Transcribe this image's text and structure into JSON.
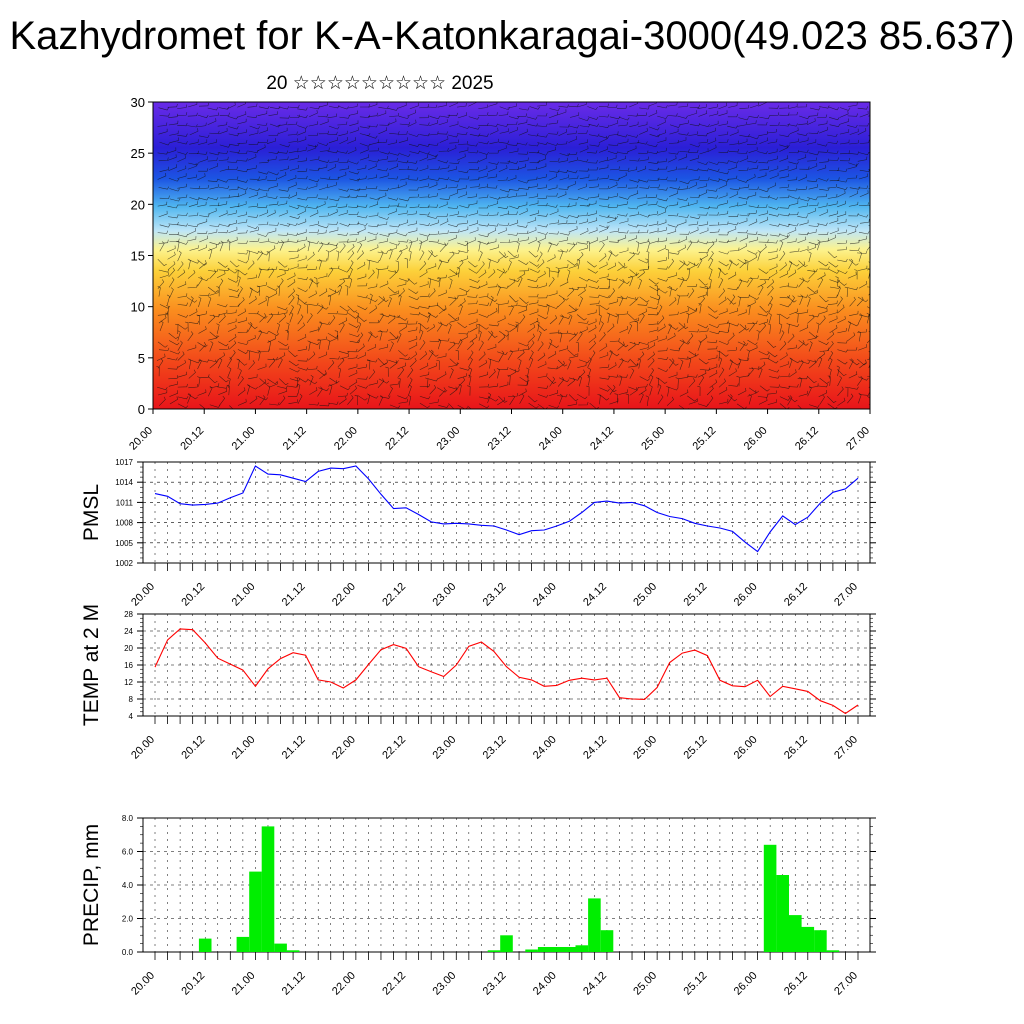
{
  "title": "Kazhydromet for K-A-Katonkaragai-3000(49.023 85.637)",
  "subtitle": "20 ☆☆☆☆☆☆☆☆☆ 2025",
  "x_tick_labels": [
    "20.00",
    "20.12",
    "21.00",
    "21.12",
    "22.00",
    "22.12",
    "23.00",
    "23.12",
    "24.00",
    "24.12",
    "25.00",
    "25.12",
    "26.00",
    "26.12",
    "27.00"
  ],
  "colors": {
    "pmsl_line": "#0000ff",
    "temp_line": "#ff0000",
    "precip_bar": "#00ee00"
  },
  "chart_data": [
    {
      "type": "heatmap",
      "title": "",
      "ylabel": "",
      "ylim": [
        0,
        30
      ],
      "y_ticks": [
        0,
        5,
        10,
        15,
        20,
        25,
        30
      ],
      "colormap": "temperature: red (warm, low levels) → orange → yellow (~15) → light blue (~20) → blue (~25) → violet (top)",
      "overlay": "wind barbs / streamlines (black)"
    },
    {
      "type": "line",
      "ylabel": "PMSL",
      "ylim": [
        1002,
        1017
      ],
      "y_ticks": [
        1002,
        1005,
        1008,
        1011,
        1014,
        1017
      ],
      "x": [
        "20.00",
        "20.03",
        "20.06",
        "20.09",
        "20.12",
        "20.15",
        "20.18",
        "20.21",
        "21.00",
        "21.03",
        "21.06",
        "21.09",
        "21.12",
        "21.15",
        "21.18",
        "21.21",
        "22.00",
        "22.03",
        "22.06",
        "22.09",
        "22.12",
        "22.15",
        "22.18",
        "22.21",
        "23.00",
        "23.03",
        "23.06",
        "23.09",
        "23.12",
        "23.15",
        "23.18",
        "23.21",
        "24.00",
        "24.03",
        "24.06",
        "24.09",
        "24.12",
        "24.15",
        "24.18",
        "24.21",
        "25.00",
        "25.03",
        "25.06",
        "25.09",
        "25.12",
        "25.15",
        "25.18",
        "25.21",
        "26.00",
        "26.03",
        "26.06",
        "26.09",
        "26.12",
        "26.15",
        "26.18",
        "26.21",
        "27.00"
      ],
      "values": [
        1012.3,
        1011.9,
        1010.8,
        1010.6,
        1010.7,
        1010.9,
        1011.7,
        1012.4,
        1016.4,
        1015.2,
        1015.1,
        1014.6,
        1014.1,
        1015.6,
        1016.1,
        1016.0,
        1016.4,
        1014.5,
        1012.2,
        1010.1,
        1010.2,
        1009.2,
        1008.1,
        1007.8,
        1007.9,
        1007.8,
        1007.6,
        1007.5,
        1006.9,
        1006.2,
        1006.8,
        1006.9,
        1007.5,
        1008.2,
        1009.5,
        1011.0,
        1011.2,
        1010.9,
        1011.0,
        1010.5,
        1009.5,
        1008.9,
        1008.6,
        1007.9,
        1007.5,
        1007.2,
        1006.7,
        1005.1,
        1003.7,
        1006.6,
        1009.0,
        1007.7,
        1008.8,
        1010.9,
        1012.5,
        1013.0,
        1014.6
      ]
    },
    {
      "type": "line",
      "ylabel": "TEMP at 2 M",
      "ylim": [
        4,
        28
      ],
      "y_ticks": [
        4,
        8,
        12,
        16,
        20,
        24,
        28
      ],
      "x": [
        "20.00",
        "20.03",
        "20.06",
        "20.09",
        "20.12",
        "20.15",
        "20.18",
        "20.21",
        "21.00",
        "21.03",
        "21.06",
        "21.09",
        "21.12",
        "21.15",
        "21.18",
        "21.21",
        "22.00",
        "22.03",
        "22.06",
        "22.09",
        "22.12",
        "22.15",
        "22.18",
        "22.21",
        "23.00",
        "23.03",
        "23.06",
        "23.09",
        "23.12",
        "23.15",
        "23.18",
        "23.21",
        "24.00",
        "24.03",
        "24.06",
        "24.09",
        "24.12",
        "24.15",
        "24.18",
        "24.21",
        "25.00",
        "25.03",
        "25.06",
        "25.09",
        "25.12",
        "25.15",
        "25.18",
        "25.21",
        "26.00",
        "26.03",
        "26.06",
        "26.09",
        "26.12",
        "26.15",
        "26.18",
        "26.21",
        "27.00"
      ],
      "values": [
        15.5,
        21.9,
        24.5,
        24.3,
        21.2,
        17.6,
        16.2,
        14.8,
        11.0,
        15.1,
        17.5,
        18.9,
        18.3,
        12.5,
        12.0,
        10.6,
        12.5,
        16.1,
        19.6,
        20.8,
        19.9,
        15.6,
        14.4,
        13.3,
        16.0,
        20.4,
        21.4,
        19.2,
        15.6,
        13.1,
        12.5,
        11.0,
        11.2,
        12.4,
        12.9,
        12.5,
        12.9,
        8.3,
        8.0,
        7.9,
        10.7,
        16.6,
        18.8,
        19.5,
        18.2,
        12.4,
        11.1,
        10.9,
        12.4,
        8.6,
        11.0,
        10.4,
        9.8,
        7.6,
        6.5,
        4.6,
        6.6
      ]
    },
    {
      "type": "bar",
      "ylabel": "PRECIP, mm",
      "ylim": [
        0,
        8
      ],
      "y_ticks": [
        "0.0",
        "2.0",
        "4.0",
        "6.0",
        "8.0"
      ],
      "x": [
        "20.00",
        "20.03",
        "20.06",
        "20.09",
        "20.12",
        "20.15",
        "20.18",
        "20.21",
        "21.00",
        "21.03",
        "21.06",
        "21.09",
        "21.12",
        "21.15",
        "21.18",
        "21.21",
        "22.00",
        "22.03",
        "22.06",
        "22.09",
        "22.12",
        "22.15",
        "22.18",
        "22.21",
        "23.00",
        "23.03",
        "23.06",
        "23.09",
        "23.12",
        "23.15",
        "23.18",
        "23.21",
        "24.00",
        "24.03",
        "24.06",
        "24.09",
        "24.12",
        "24.15",
        "24.18",
        "24.21",
        "25.00",
        "25.03",
        "25.06",
        "25.09",
        "25.12",
        "25.15",
        "25.18",
        "25.21",
        "26.00",
        "26.03",
        "26.06",
        "26.09",
        "26.12",
        "26.15",
        "26.18",
        "26.21",
        "27.00"
      ],
      "values": [
        0,
        0,
        0,
        0,
        0.8,
        0,
        0,
        0.9,
        4.8,
        7.5,
        0.5,
        0.1,
        0,
        0,
        0,
        0,
        0,
        0,
        0,
        0,
        0,
        0,
        0,
        0,
        0,
        0,
        0,
        0.1,
        1.0,
        0,
        0.15,
        0.3,
        0.3,
        0.3,
        0.4,
        3.2,
        1.3,
        0,
        0,
        0,
        0,
        0,
        0,
        0,
        0,
        0,
        0,
        0,
        0,
        6.4,
        4.6,
        2.2,
        1.5,
        1.3,
        0.1,
        0,
        0
      ]
    }
  ]
}
